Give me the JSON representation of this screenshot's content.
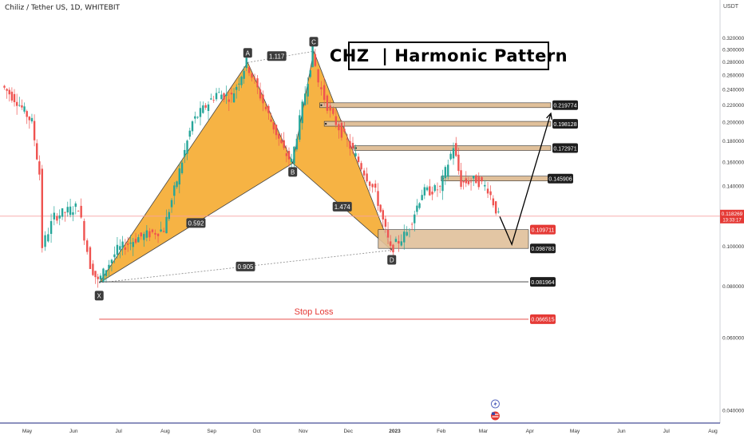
{
  "header": {
    "symbol_line": "Chiliz / Tether US, 1D, WHITEBIT",
    "currency": "USDT"
  },
  "title": "CHZ  | Harmonic Pattern",
  "chart_data": {
    "type": "candlestick",
    "title": "CHZ  | Harmonic Pattern",
    "y_scale": "log",
    "ylim": [
      0.036,
      0.34
    ],
    "y_ticks": [
      "0.040000",
      "0.060000",
      "0.080000",
      "0.100000",
      "0.120000",
      "0.140000",
      "0.160000",
      "0.180000",
      "0.200000",
      "0.220000",
      "0.240000",
      "0.260000",
      "0.280000",
      "0.300000",
      "0.320000"
    ],
    "x_ticks": [
      "May",
      "Jun",
      "Jul",
      "Aug",
      "Sep",
      "Oct",
      "Nov",
      "Dec",
      "2023",
      "Feb",
      "Mar",
      "Apr",
      "May",
      "Jun",
      "Jul",
      "Aug"
    ],
    "price_path": [
      {
        "date": "2022-04-15",
        "close": 0.245
      },
      {
        "date": "2022-04-25",
        "close": 0.225
      },
      {
        "date": "2022-05-05",
        "close": 0.2
      },
      {
        "date": "2022-05-10",
        "close": 0.15
      },
      {
        "date": "2022-05-12",
        "close": 0.1
      },
      {
        "date": "2022-05-20",
        "close": 0.118
      },
      {
        "date": "2022-06-05",
        "close": 0.125
      },
      {
        "date": "2022-06-13",
        "close": 0.09
      },
      {
        "date": "2022-06-18",
        "close": 0.082
      },
      {
        "date": "2022-07-01",
        "close": 0.098
      },
      {
        "date": "2022-07-15",
        "close": 0.105
      },
      {
        "date": "2022-08-01",
        "close": 0.11
      },
      {
        "date": "2022-08-20",
        "close": 0.2
      },
      {
        "date": "2022-09-05",
        "close": 0.235
      },
      {
        "date": "2022-09-15",
        "close": 0.23
      },
      {
        "date": "2022-09-25",
        "close": 0.279
      },
      {
        "date": "2022-10-08",
        "close": 0.215
      },
      {
        "date": "2022-10-20",
        "close": 0.17
      },
      {
        "date": "2022-10-25",
        "close": 0.16
      },
      {
        "date": "2022-11-05",
        "close": 0.255
      },
      {
        "date": "2022-11-08",
        "close": 0.297
      },
      {
        "date": "2022-11-12",
        "close": 0.25
      },
      {
        "date": "2022-11-20",
        "close": 0.21
      },
      {
        "date": "2022-12-05",
        "close": 0.17
      },
      {
        "date": "2022-12-20",
        "close": 0.135
      },
      {
        "date": "2022-12-30",
        "close": 0.098
      },
      {
        "date": "2023-01-10",
        "close": 0.108
      },
      {
        "date": "2023-01-20",
        "close": 0.135
      },
      {
        "date": "2023-02-01",
        "close": 0.138
      },
      {
        "date": "2023-02-10",
        "close": 0.175
      },
      {
        "date": "2023-02-15",
        "close": 0.142
      },
      {
        "date": "2023-02-25",
        "close": 0.145
      },
      {
        "date": "2023-03-05",
        "close": 0.138
      },
      {
        "date": "2023-03-12",
        "close": 0.118
      }
    ],
    "pattern_points": [
      {
        "label": "X",
        "date": "2022-06-18",
        "price": 0.0815
      },
      {
        "label": "A",
        "date": "2022-09-25",
        "price": 0.279
      },
      {
        "label": "B",
        "date": "2022-10-25",
        "price": 0.159
      },
      {
        "label": "C",
        "date": "2022-11-08",
        "price": 0.297
      },
      {
        "label": "D",
        "date": "2022-12-30",
        "price": 0.0978
      }
    ],
    "ratios": [
      {
        "leg": "XB",
        "value": "0.592"
      },
      {
        "leg": "AC",
        "value": "1.117"
      },
      {
        "leg": "BD",
        "value": "1.474"
      },
      {
        "leg": "XD",
        "value": "0.905"
      }
    ],
    "price_labels": {
      "current": "0.118269",
      "countdown": "13:33:17",
      "entry_top": "0.109711",
      "entry_bottom": "0.098783",
      "stop_ref": "0.081964",
      "stop_loss": "0.066515",
      "target1": "0.145906",
      "target2": "0.172971",
      "target3": "0.198128",
      "target4": "0.219774"
    },
    "stop_loss_label": "Stop Loss",
    "target_prices": [
      0.145906,
      0.172971,
      0.198128,
      0.219774
    ],
    "projection": [
      {
        "date": "2023-03-12",
        "price": 0.118
      },
      {
        "date": "2023-03-20",
        "price": 0.101
      },
      {
        "date": "2023-04-15",
        "price": 0.21
      }
    ],
    "colors": {
      "pattern_fill": "#f5a623",
      "pattern_line": "#444444",
      "zone_fill": "#e0c09a",
      "zone_border": "#333333",
      "candle_up": "#26a69a",
      "candle_down": "#ef5350",
      "stop_line": "#e53935",
      "stop_text": "#e53935",
      "label_dark": "#1e1e1e",
      "label_red": "#e53935",
      "current_line": "#f8a1a1"
    }
  }
}
